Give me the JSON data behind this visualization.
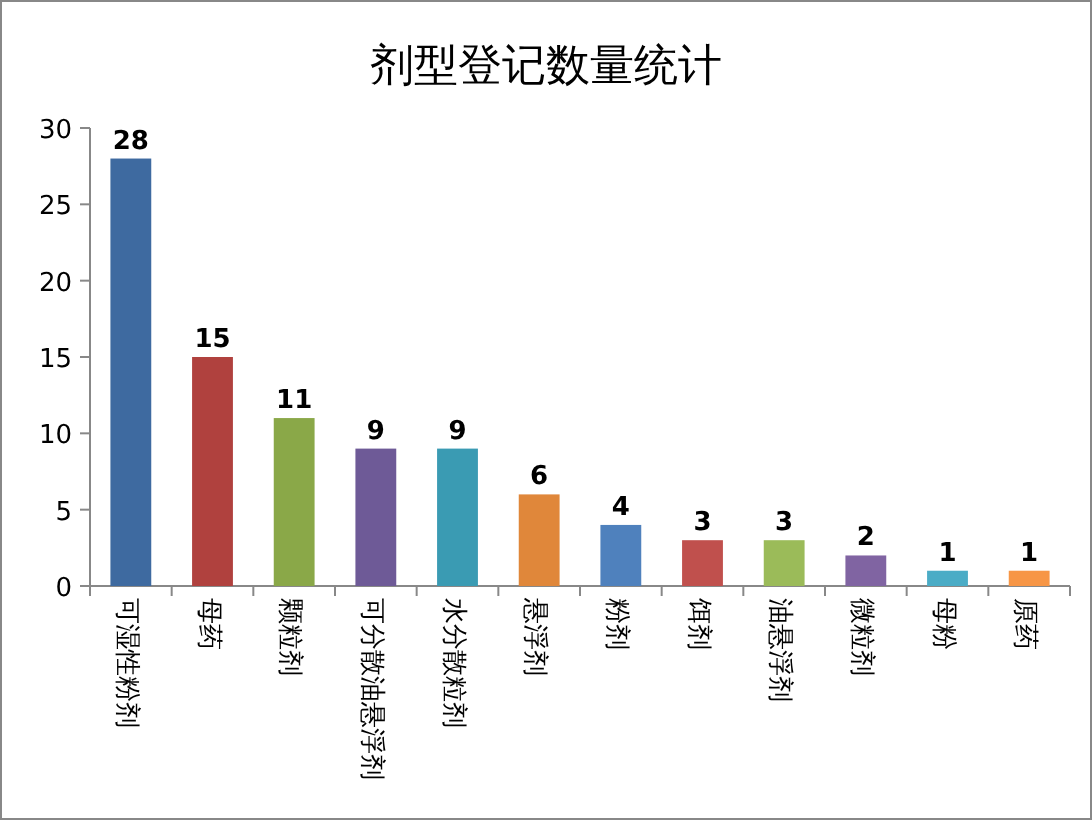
{
  "chart_data": {
    "type": "bar",
    "title": "剂型登记数量统计",
    "categories": [
      "可湿性粉剂",
      "母药",
      "颗粒剂",
      "可分散油悬浮剂",
      "水分散粒剂",
      "悬浮剂",
      "粉剂",
      "饵剂",
      "油悬浮剂",
      "微粒剂",
      "母粉",
      "原药"
    ],
    "values": [
      28,
      15,
      11,
      9,
      9,
      6,
      4,
      3,
      3,
      2,
      1,
      1
    ],
    "colors": [
      "#3e6aa0",
      "#b0413e",
      "#8aa848",
      "#6e5a97",
      "#3a9bb3",
      "#e0873a",
      "#4f81bd",
      "#c0504d",
      "#9bbb59",
      "#8064a2",
      "#4bacc6",
      "#f79646"
    ],
    "ylim": [
      0,
      30
    ],
    "yticks": [
      0,
      5,
      10,
      15,
      20,
      25,
      30
    ],
    "data_labels": true,
    "grid": false
  }
}
